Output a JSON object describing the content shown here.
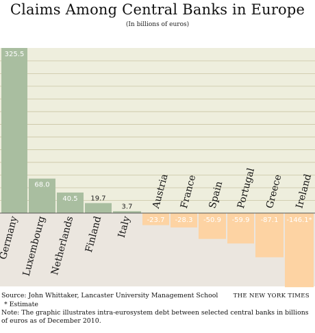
{
  "chart_data": {
    "type": "bar",
    "title": "Claims Among Central Banks in Europe",
    "subtitle": "(In billions of euros)",
    "categories": [
      "Germany",
      "Luxembourg",
      "Netherlands",
      "Finland",
      "Italy",
      "Austria",
      "France",
      "Spain",
      "Portugal",
      "Greece",
      "Ireland"
    ],
    "values": [
      325.5,
      68.0,
      40.5,
      19.7,
      3.7,
      -23.7,
      -28.3,
      -50.9,
      -59.9,
      -87.1,
      -146.1
    ],
    "value_labels": [
      "325.5",
      "68.0",
      "40.5",
      "19.7",
      "3.7",
      "-23.7",
      "-28.3",
      "-50.9",
      "-59.9",
      "-87.1",
      "-146.1*"
    ],
    "ylim": [
      -146.1,
      325.5
    ],
    "grid": true,
    "colors": {
      "positive": "#a9bea0",
      "negative": "#fdd3a3",
      "positive_bg": "#eeeedd",
      "negative_bg": "#ebe6df",
      "grid": "#c9c4a2"
    }
  },
  "footer": {
    "source": "Source: John Whittaker, Lancaster University Management School",
    "estimate": "* Estimate",
    "note": "Note: The graphic illustrates intra-eurosystem debt between selected central banks in billions of euros as of December 2010.",
    "brand": "THE NEW YORK TIMES"
  }
}
